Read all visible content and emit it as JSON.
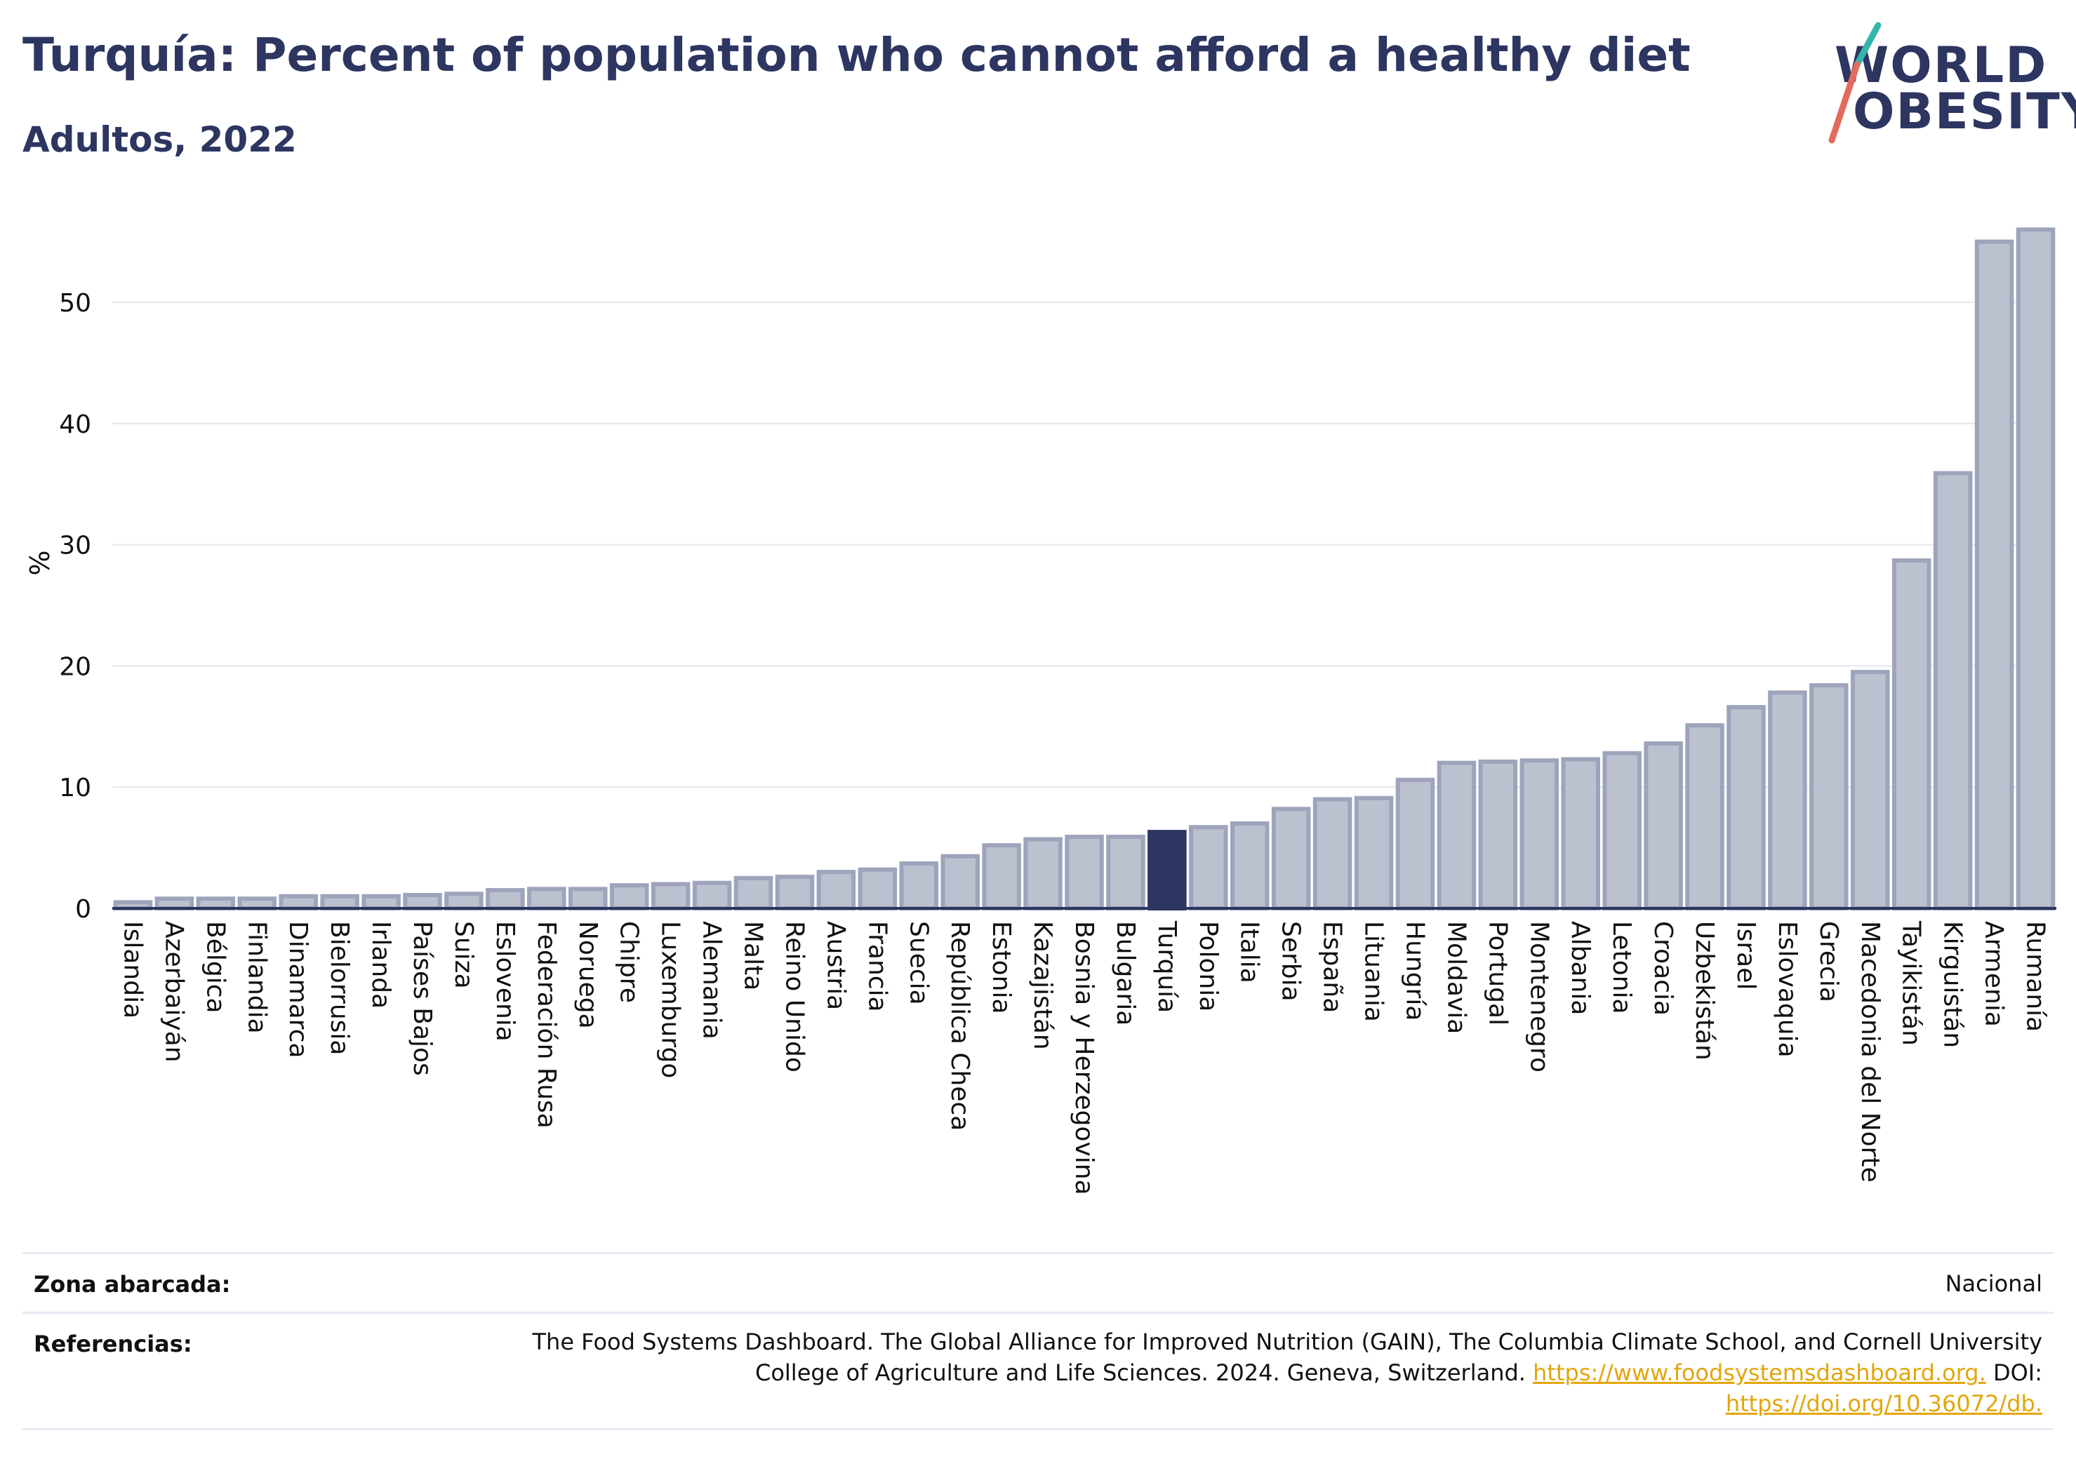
{
  "header": {
    "title": "Turquía: Percent of population who cannot afford a healthy diet",
    "subtitle": "Adultos, 2022"
  },
  "logo": {
    "line1": "WORLD",
    "line2": "OBESITY"
  },
  "colors": {
    "bar": "#bcc1d0",
    "bar_border": "#9ea4bb",
    "highlight": "#2d3561",
    "grid": "#e4e6ee",
    "axis": "#2d3561",
    "link": "#e2a60c",
    "logo_slash_top": "#34b5ac",
    "logo_slash_bottom": "#e36b5d"
  },
  "chart_data": {
    "type": "bar",
    "ylabel": "%",
    "ylim": [
      0,
      57
    ],
    "yticks": [
      0,
      10,
      20,
      30,
      40,
      50
    ],
    "grid": true,
    "highlight": "Turquía",
    "categories": [
      "Islandia",
      "Azerbaiyán",
      "Bélgica",
      "Finlandia",
      "Dinamarca",
      "Bielorrusia",
      "Irlanda",
      "Países Bajos",
      "Suiza",
      "Eslovenia",
      "Federación Rusa",
      "Noruega",
      "Chipre",
      "Luxemburgo",
      "Alemania",
      "Malta",
      "Reino Unido",
      "Austria",
      "Francia",
      "Suecia",
      "República Checa",
      "Estonia",
      "Kazajistán",
      "Bosnia y Herzegovina",
      "Bulgaria",
      "Turquía",
      "Polonia",
      "Italia",
      "Serbia",
      "España",
      "Lituania",
      "Hungría",
      "Moldavia",
      "Portugal",
      "Montenegro",
      "Albania",
      "Letonia",
      "Croacia",
      "Uzbekistán",
      "Israel",
      "Eslovaquia",
      "Grecia",
      "Macedonia del Norte",
      "Tayikistán",
      "Kirguistán",
      "Armenia",
      "Rumanía"
    ],
    "values": [
      0.5,
      0.8,
      0.8,
      0.8,
      1.0,
      1.0,
      1.0,
      1.1,
      1.2,
      1.5,
      1.6,
      1.6,
      1.9,
      2.0,
      2.1,
      2.5,
      2.6,
      3.0,
      3.2,
      3.7,
      4.3,
      5.2,
      5.7,
      5.9,
      5.9,
      6.3,
      6.7,
      7.0,
      8.2,
      9.0,
      9.1,
      10.6,
      12.0,
      12.1,
      12.2,
      12.3,
      12.8,
      13.6,
      15.1,
      16.6,
      17.8,
      18.4,
      19.5,
      28.7,
      35.9,
      55.0,
      56.0
    ]
  },
  "footer": {
    "zone_label": "Zona abarcada:",
    "zone_value": "Nacional",
    "refs_label": "Referencias:",
    "refs_text_1": "The Food Systems Dashboard. The Global Alliance for Improved Nutrition (GAIN), The Columbia Climate School, and Cornell University",
    "refs_text_2": "College of Agriculture and Life Sciences. 2024. Geneva, Switzerland.",
    "refs_link_1": "https://www.foodsystemsdashboard.org.",
    "refs_doi": "DOI:",
    "refs_link_2": "https://doi.org/10.36072/db."
  }
}
